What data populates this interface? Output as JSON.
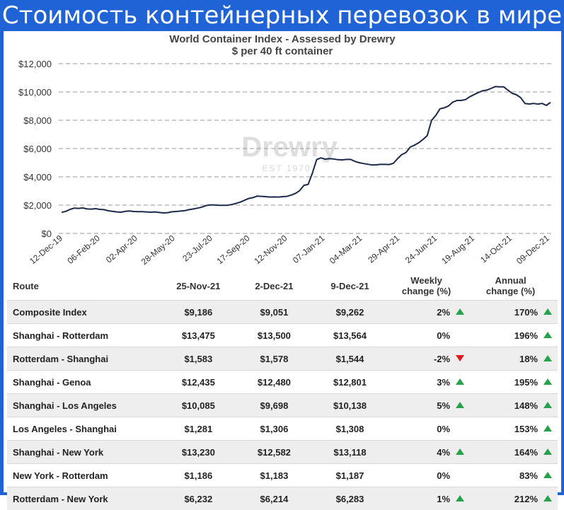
{
  "banner": {
    "title": "Стоимость контейнерных перевозок в мире"
  },
  "chart_data": {
    "type": "line",
    "title": "World Container Index - Assessed by Drewry",
    "subtitle": "$ per 40 ft container",
    "watermark": "Drewry",
    "watermark_sub": "EST 1970",
    "ylim": [
      0,
      12000
    ],
    "yticks": [
      "$0",
      "$2,000",
      "$4,000",
      "$6,000",
      "$8,000",
      "$10,000",
      "$12,000"
    ],
    "ytick_values": [
      0,
      2000,
      4000,
      6000,
      8000,
      10000,
      12000
    ],
    "xticks": [
      "12-Dec-19",
      "06-Feb-20",
      "02-Apr-20",
      "28-May-20",
      "23-Jul-20",
      "17-Sep-20",
      "12-Nov-20",
      "07-Jan-21",
      "04-Mar-21",
      "29-Apr-21",
      "24-Jun-21",
      "19-Aug-21",
      "14-Oct-21",
      "09-Dec-21"
    ],
    "grid": "horizontal-dashed",
    "line_color": "#1c2a4a",
    "series": [
      {
        "values": [
          1490,
          1560,
          1700,
          1790,
          1770,
          1800,
          1730,
          1720,
          1750,
          1700,
          1680,
          1600,
          1560,
          1520,
          1500,
          1560,
          1590,
          1550,
          1540,
          1540,
          1520,
          1500,
          1520,
          1480,
          1450,
          1470,
          1530,
          1550,
          1580,
          1610,
          1680,
          1730,
          1790,
          1860,
          1970,
          2020,
          2010,
          1990,
          1990,
          1990,
          2040,
          2120,
          2210,
          2340,
          2470,
          2530,
          2640,
          2620,
          2600,
          2570,
          2580,
          2570,
          2600,
          2620,
          2710,
          2830,
          3030,
          3400,
          3470,
          4270,
          5220,
          5340,
          5250,
          5290,
          5260,
          5210,
          5200,
          5230,
          5230,
          5090,
          5000,
          4940,
          4890,
          4840,
          4850,
          4880,
          4880,
          4870,
          4950,
          5280,
          5570,
          5720,
          6100,
          6240,
          6410,
          6640,
          6910,
          7990,
          8340,
          8810,
          8880,
          9010,
          9280,
          9400,
          9400,
          9460,
          9660,
          9810,
          9960,
          10080,
          10130,
          10250,
          10380,
          10360,
          10360,
          10120,
          9900,
          9800,
          9590,
          9180,
          9150,
          9190,
          9140,
          9190,
          9051,
          9262
        ]
      }
    ]
  },
  "table": {
    "headers": {
      "route": "Route",
      "d1": "25-Nov-21",
      "d2": "2-Dec-21",
      "d3": "9-Dec-21",
      "weekly_l1": "Weekly",
      "weekly_l2": "change (%)",
      "annual_l1": "Annual",
      "annual_l2": "change (%)"
    },
    "arrow_up_color": "#26a34a",
    "arrow_down_color": "#e01b1b",
    "rows": [
      {
        "route": "Composite Index",
        "d1": "$9,186",
        "d2": "$9,051",
        "d3": "$9,262",
        "weekly": "2%",
        "weekly_dir": "up",
        "annual": "170%",
        "annual_dir": "up"
      },
      {
        "route": "Shanghai - Rotterdam",
        "d1": "$13,475",
        "d2": "$13,500",
        "d3": "$13,564",
        "weekly": "0%",
        "weekly_dir": "none",
        "annual": "196%",
        "annual_dir": "up"
      },
      {
        "route": "Rotterdam - Shanghai",
        "d1": "$1,583",
        "d2": "$1,578",
        "d3": "$1,544",
        "weekly": "-2%",
        "weekly_dir": "down",
        "annual": "18%",
        "annual_dir": "up"
      },
      {
        "route": "Shanghai - Genoa",
        "d1": "$12,435",
        "d2": "$12,480",
        "d3": "$12,801",
        "weekly": "3%",
        "weekly_dir": "up",
        "annual": "195%",
        "annual_dir": "up"
      },
      {
        "route": "Shanghai - Los Angeles",
        "d1": "$10,085",
        "d2": "$9,698",
        "d3": "$10,138",
        "weekly": "5%",
        "weekly_dir": "up",
        "annual": "148%",
        "annual_dir": "up"
      },
      {
        "route": "Los Angeles - Shanghai",
        "d1": "$1,281",
        "d2": "$1,306",
        "d3": "$1,308",
        "weekly": "0%",
        "weekly_dir": "none",
        "annual": "153%",
        "annual_dir": "up"
      },
      {
        "route": "Shanghai - New York",
        "d1": "$13,230",
        "d2": "$12,582",
        "d3": "$13,118",
        "weekly": "4%",
        "weekly_dir": "up",
        "annual": "164%",
        "annual_dir": "up"
      },
      {
        "route": "New York - Rotterdam",
        "d1": "$1,186",
        "d2": "$1,183",
        "d3": "$1,187",
        "weekly": "0%",
        "weekly_dir": "none",
        "annual": "83%",
        "annual_dir": "up"
      },
      {
        "route": "Rotterdam - New York",
        "d1": "$6,232",
        "d2": "$6,214",
        "d3": "$6,283",
        "weekly": "1%",
        "weekly_dir": "up",
        "annual": "212%",
        "annual_dir": "up"
      }
    ]
  }
}
